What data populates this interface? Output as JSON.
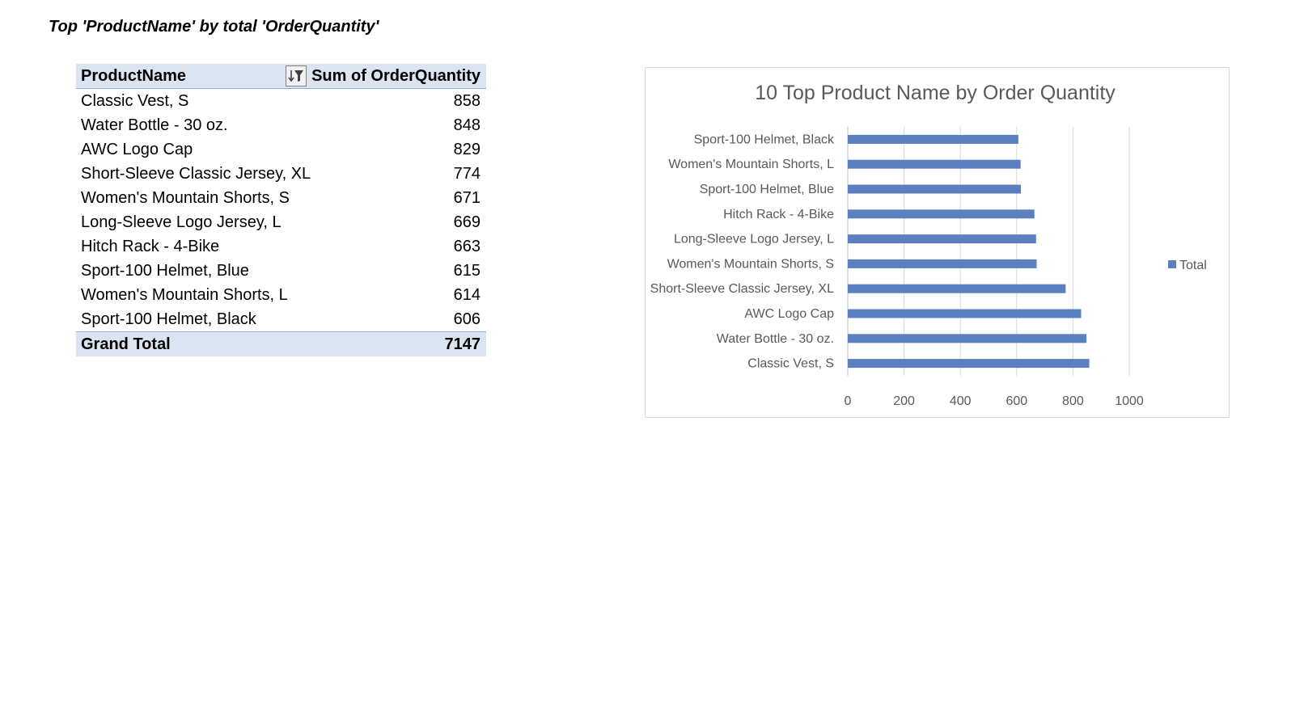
{
  "sheet": {
    "title": "Top 'ProductName' by total 'OrderQuantity'"
  },
  "pivot": {
    "header_name": "ProductName",
    "header_value": "Sum of OrderQuantity",
    "filter_icon": "sort-filter-icon",
    "rows": [
      {
        "name": "Classic Vest, S",
        "value": "858"
      },
      {
        "name": "Water Bottle - 30 oz.",
        "value": "848"
      },
      {
        "name": "AWC Logo Cap",
        "value": "829"
      },
      {
        "name": "Short-Sleeve Classic Jersey, XL",
        "value": "774"
      },
      {
        "name": "Women's Mountain Shorts, S",
        "value": "671"
      },
      {
        "name": "Long-Sleeve Logo Jersey, L",
        "value": "669"
      },
      {
        "name": "Hitch Rack - 4-Bike",
        "value": "663"
      },
      {
        "name": "Sport-100 Helmet, Blue",
        "value": "615"
      },
      {
        "name": "Women's Mountain Shorts, L",
        "value": "614"
      },
      {
        "name": "Sport-100 Helmet, Black",
        "value": "606"
      }
    ],
    "total_label": "Grand Total",
    "total_value": "7147"
  },
  "chart_data": {
    "type": "bar",
    "orientation": "horizontal",
    "title": "10 Top Product Name by Order Quantity",
    "categories": [
      "Sport-100 Helmet, Black",
      "Women's Mountain Shorts, L",
      "Sport-100 Helmet, Blue",
      "Hitch Rack - 4-Bike",
      "Long-Sleeve Logo Jersey, L",
      "Women's Mountain Shorts, S",
      "Short-Sleeve Classic Jersey, XL",
      "AWC Logo Cap",
      "Water Bottle - 30 oz.",
      "Classic Vest, S"
    ],
    "series": [
      {
        "name": "Total",
        "values": [
          606,
          614,
          615,
          663,
          669,
          671,
          774,
          829,
          848,
          858
        ]
      }
    ],
    "xlim": [
      0,
      1000
    ],
    "xticks": [
      "0",
      "200",
      "400",
      "600",
      "800",
      "1000"
    ],
    "xlabel": "",
    "ylabel": "",
    "grid": true,
    "legend": "right",
    "color": "#5b7fbf"
  }
}
